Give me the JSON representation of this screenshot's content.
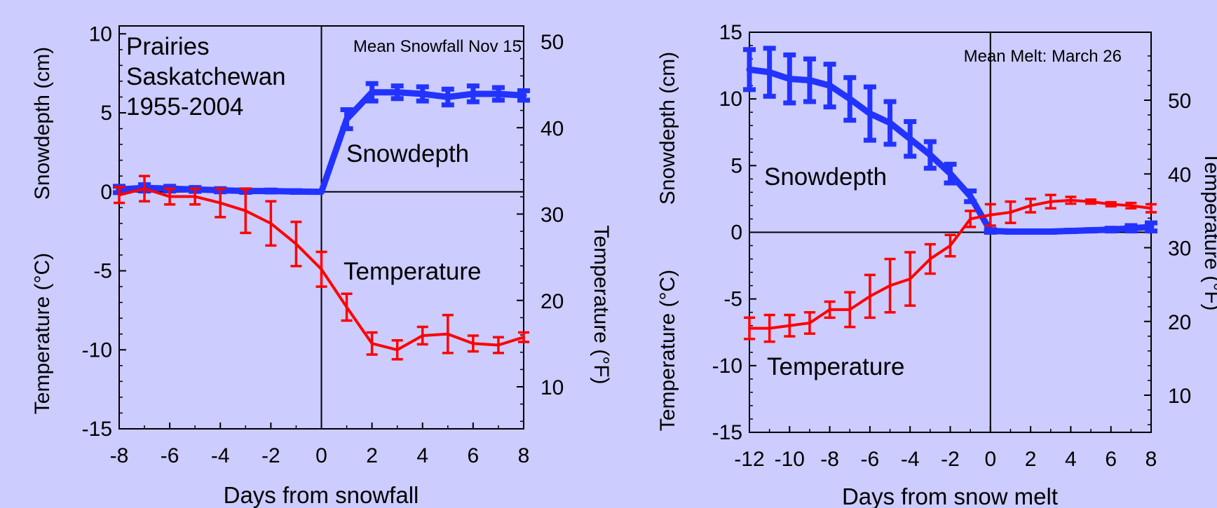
{
  "colors": {
    "background": "#ccccff",
    "snow": "#2233ff",
    "temp": "#ff0000",
    "axis": "#000000"
  },
  "chart_data": [
    {
      "type": "line",
      "annotation": [
        "Prairies",
        "Saskatchewan",
        "1955-2004"
      ],
      "note": "Mean Snowfall Nov 15",
      "xlabel": "Days from snowfall",
      "ylabel_left": "Snowdepth (cm)",
      "ylabel_left_temp": "Temperature (°C)",
      "ylabel_right": "Temperature (°F)",
      "xlim": [
        -8,
        8
      ],
      "ylim": [
        -15,
        10.5
      ],
      "xticks": [
        -8,
        -6,
        -4,
        -2,
        0,
        2,
        4,
        6,
        8
      ],
      "yticks": [
        -15,
        -10,
        -5,
        0,
        5,
        10
      ],
      "yticks_right": [
        10,
        20,
        30,
        40,
        50
      ],
      "series": [
        {
          "name": "Snowdepth",
          "x": [
            -8,
            -7,
            -6,
            -5,
            -4,
            -3,
            -2,
            -1,
            0,
            1,
            2,
            3,
            4,
            5,
            6,
            7,
            8
          ],
          "values": [
            0.15,
            0.25,
            0.2,
            0.15,
            0.1,
            0.05,
            0.05,
            0.02,
            0.0,
            4.6,
            6.3,
            6.3,
            6.2,
            6.0,
            6.2,
            6.2,
            6.1
          ],
          "errors": [
            0.2,
            0.2,
            0.15,
            0.12,
            0.1,
            0.08,
            0.06,
            0.05,
            0.0,
            0.6,
            0.55,
            0.4,
            0.45,
            0.5,
            0.5,
            0.4,
            0.3
          ],
          "label": "Snowdepth"
        },
        {
          "name": "Temperature",
          "x": [
            -8,
            -7,
            -6,
            -5,
            -4,
            -3,
            -2,
            -1,
            0,
            1,
            2,
            3,
            4,
            5,
            6,
            7,
            8
          ],
          "values": [
            -0.2,
            0.2,
            -0.3,
            -0.3,
            -0.7,
            -1.2,
            -2.0,
            -3.3,
            -4.9,
            -7.3,
            -9.6,
            -10.0,
            -9.1,
            -9.0,
            -9.6,
            -9.7,
            -9.2
          ],
          "errors": [
            0.5,
            0.8,
            0.5,
            0.5,
            0.9,
            1.4,
            1.4,
            1.4,
            1.1,
            0.85,
            0.7,
            0.6,
            0.55,
            1.2,
            0.5,
            0.5,
            0.3
          ],
          "label": "Temperature"
        }
      ]
    },
    {
      "type": "line",
      "note": "Mean Melt: March 26",
      "xlabel": "Days from snow melt",
      "ylabel_left": "Snowdepth (cm)",
      "ylabel_left_temp": "Temperature (°C)",
      "ylabel_right": "Temperature (°F)",
      "xlim": [
        -12,
        8
      ],
      "ylim": [
        -15,
        15
      ],
      "xticks": [
        -12,
        -10,
        -8,
        -6,
        -4,
        -2,
        0,
        2,
        4,
        6,
        8
      ],
      "yticks": [
        -15,
        -10,
        -5,
        0,
        5,
        10,
        15
      ],
      "yticks_right": [
        10,
        20,
        30,
        40,
        50
      ],
      "series": [
        {
          "name": "Snowdepth",
          "x": [
            -12,
            -11,
            -10,
            -9,
            -8,
            -7,
            -6,
            -5,
            -4,
            -3,
            -2,
            -1,
            0,
            1,
            2,
            3,
            4,
            5,
            6,
            7,
            8
          ],
          "values": [
            12.2,
            12.0,
            11.5,
            11.4,
            11.0,
            10.0,
            8.9,
            8.2,
            7.0,
            5.8,
            4.4,
            2.7,
            0.1,
            0.05,
            0.05,
            0.05,
            0.1,
            0.15,
            0.2,
            0.3,
            0.4
          ],
          "errors": [
            1.5,
            1.8,
            1.8,
            1.6,
            1.6,
            1.6,
            2.0,
            1.6,
            1.3,
            1.0,
            0.7,
            0.4,
            0.1,
            0.05,
            0.05,
            0.05,
            0.05,
            0.05,
            0.1,
            0.2,
            0.3
          ],
          "label": "Snowdepth"
        },
        {
          "name": "Temperature",
          "x": [
            -12,
            -11,
            -10,
            -9,
            -8,
            -7,
            -6,
            -5,
            -4,
            -3,
            -2,
            -1,
            0,
            1,
            2,
            3,
            4,
            5,
            6,
            7,
            8
          ],
          "values": [
            -7.2,
            -7.2,
            -7.0,
            -6.8,
            -5.8,
            -5.8,
            -4.8,
            -4.0,
            -3.5,
            -2.0,
            -1.0,
            1.0,
            1.3,
            1.5,
            2.0,
            2.3,
            2.4,
            2.3,
            2.1,
            2.0,
            1.8
          ],
          "errors": [
            0.8,
            1.0,
            0.8,
            0.8,
            0.6,
            1.3,
            1.6,
            2.0,
            2.0,
            1.1,
            0.8,
            0.6,
            0.8,
            0.8,
            0.5,
            0.5,
            0.25,
            0.15,
            0.15,
            0.2,
            0.3
          ],
          "label": "Temperature"
        }
      ]
    }
  ]
}
